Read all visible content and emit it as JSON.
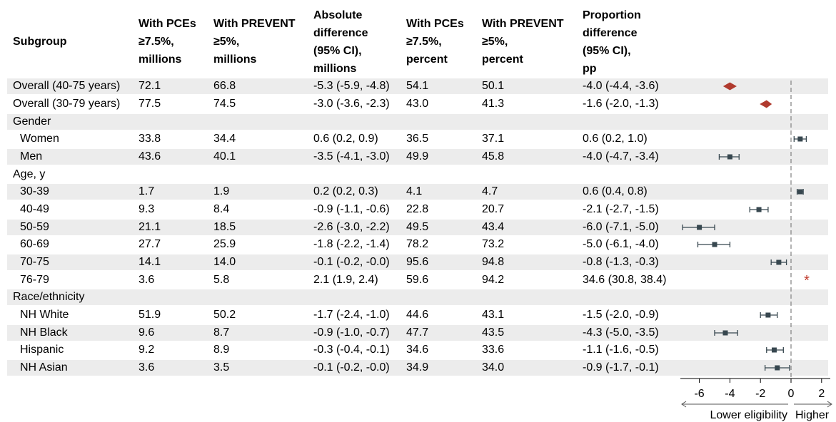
{
  "headers": [
    [
      "Subgroup"
    ],
    [
      "With PCEs",
      "≥7.5%,",
      "millions"
    ],
    [
      "With PREVENT",
      "≥5%,",
      "millions"
    ],
    [
      "Absolute",
      "difference",
      "(95% CI),",
      "millions"
    ],
    [
      "With PCEs",
      "≥7.5%,",
      "percent"
    ],
    [
      "With PREVENT",
      "≥5%,",
      "percent"
    ],
    [
      "Proportion",
      "difference",
      "(95% CI),",
      "pp"
    ]
  ],
  "rows": [
    {
      "label": "Overall (40-75 years)",
      "pce_m": "72.1",
      "prev_m": "66.8",
      "abs_diff": "-5.3 (-5.9, -4.8)",
      "pce_pct": "54.1",
      "prev_pct": "50.1",
      "prop_diff": "-4.0 (-4.4, -3.6)"
    },
    {
      "label": "Overall (30-79 years)",
      "pce_m": "77.5",
      "prev_m": "74.5",
      "abs_diff": "-3.0 (-3.6, -2.3)",
      "pce_pct": "43.0",
      "prev_pct": "41.3",
      "prop_diff": "-1.6 (-2.0, -1.3)"
    },
    {
      "label": "Gender",
      "pce_m": "",
      "prev_m": "",
      "abs_diff": "",
      "pce_pct": "",
      "prev_pct": "",
      "prop_diff": ""
    },
    {
      "label": "Women",
      "pce_m": "33.8",
      "prev_m": "34.4",
      "abs_diff": "0.6 (0.2, 0.9)",
      "pce_pct": "36.5",
      "prev_pct": "37.1",
      "prop_diff": "0.6 (0.2, 1.0)"
    },
    {
      "label": "Men",
      "pce_m": "43.6",
      "prev_m": "40.1",
      "abs_diff": "-3.5 (-4.1, -3.0)",
      "pce_pct": "49.9",
      "prev_pct": "45.8",
      "prop_diff": "-4.0 (-4.7, -3.4)"
    },
    {
      "label": "Age, y",
      "pce_m": "",
      "prev_m": "",
      "abs_diff": "",
      "pce_pct": "",
      "prev_pct": "",
      "prop_diff": ""
    },
    {
      "label": "30-39",
      "pce_m": "1.7",
      "prev_m": "1.9",
      "abs_diff": "0.2 (0.2, 0.3)",
      "pce_pct": "4.1",
      "prev_pct": "4.7",
      "prop_diff": "0.6 (0.4, 0.8)"
    },
    {
      "label": "40-49",
      "pce_m": "9.3",
      "prev_m": "8.4",
      "abs_diff": "-0.9 (-1.1, -0.6)",
      "pce_pct": "22.8",
      "prev_pct": "20.7",
      "prop_diff": "-2.1 (-2.7, -1.5)"
    },
    {
      "label": "50-59",
      "pce_m": "21.1",
      "prev_m": "18.5",
      "abs_diff": "-2.6 (-3.0, -2.2)",
      "pce_pct": "49.5",
      "prev_pct": "43.4",
      "prop_diff": "-6.0 (-7.1, -5.0)"
    },
    {
      "label": "60-69",
      "pce_m": "27.7",
      "prev_m": "25.9",
      "abs_diff": "-1.8 (-2.2, -1.4)",
      "pce_pct": "78.2",
      "prev_pct": "73.2",
      "prop_diff": "-5.0 (-6.1, -4.0)"
    },
    {
      "label": "70-75",
      "pce_m": "14.1",
      "prev_m": "14.0",
      "abs_diff": "-0.1 (-0.2, -0.0)",
      "pce_pct": "95.6",
      "prev_pct": "94.8",
      "prop_diff": "-0.8 (-1.3, -0.3)"
    },
    {
      "label": "76-79",
      "pce_m": "3.6",
      "prev_m": "5.8",
      "abs_diff": "2.1 (1.9, 2.4)",
      "pce_pct": "59.6",
      "prev_pct": "94.2",
      "prop_diff": "34.6 (30.8, 38.4)"
    },
    {
      "label": "Race/ethnicity",
      "pce_m": "",
      "prev_m": "",
      "abs_diff": "",
      "pce_pct": "",
      "prev_pct": "",
      "prop_diff": ""
    },
    {
      "label": "NH White",
      "pce_m": "51.9",
      "prev_m": "50.2",
      "abs_diff": "-1.7 (-2.4, -1.0)",
      "pce_pct": "44.6",
      "prev_pct": "43.1",
      "prop_diff": "-1.5 (-2.0, -0.9)"
    },
    {
      "label": "NH Black",
      "pce_m": "9.6",
      "prev_m": "8.7",
      "abs_diff": "-0.9 (-1.0, -0.7)",
      "pce_pct": "47.7",
      "prev_pct": "43.5",
      "prop_diff": "-4.3 (-5.0, -3.5)"
    },
    {
      "label": "Hispanic",
      "pce_m": "9.2",
      "prev_m": "8.9",
      "abs_diff": "-0.3 (-0.4, -0.1)",
      "pce_pct": "34.6",
      "prev_pct": "33.6",
      "prop_diff": "-1.1 (-1.6, -0.5)"
    },
    {
      "label": "NH Asian",
      "pce_m": "3.6",
      "prev_m": "3.5",
      "abs_diff": "-0.1 (-0.2, -0.0)",
      "pce_pct": "34.9",
      "prev_pct": "34.0",
      "prop_diff": "-0.9 (-1.7, -0.1)"
    }
  ],
  "colors": {
    "row_shade": "#ececec",
    "overall_marker": "#b03a2e",
    "point_marker": "#37474f",
    "out_of_range_marker": "#c0392b",
    "reference_line": "#808080"
  },
  "chart_data": {
    "type": "forest",
    "xlim": [
      -7.5,
      2.5
    ],
    "xticks": [
      -6,
      -4,
      -2,
      0,
      2
    ],
    "tick_labels": [
      "-6",
      "-4",
      "-2",
      "0",
      "2"
    ],
    "reference_line": 0,
    "direction_labels": {
      "left": "Lower eligibility",
      "right": "Higher"
    },
    "out_of_range_symbol": "*",
    "points": [
      {
        "row": 0,
        "est": -4.0,
        "lo": -4.4,
        "hi": -3.6,
        "marker": "diamond"
      },
      {
        "row": 1,
        "est": -1.6,
        "lo": -2.0,
        "hi": -1.3,
        "marker": "diamond"
      },
      {
        "row": 3,
        "est": 0.6,
        "lo": 0.2,
        "hi": 1.0,
        "marker": "square"
      },
      {
        "row": 4,
        "est": -4.0,
        "lo": -4.7,
        "hi": -3.4,
        "marker": "square"
      },
      {
        "row": 6,
        "est": 0.6,
        "lo": 0.4,
        "hi": 0.8,
        "marker": "square"
      },
      {
        "row": 7,
        "est": -2.1,
        "lo": -2.7,
        "hi": -1.5,
        "marker": "square"
      },
      {
        "row": 8,
        "est": -6.0,
        "lo": -7.1,
        "hi": -5.0,
        "marker": "square"
      },
      {
        "row": 9,
        "est": -5.0,
        "lo": -6.1,
        "hi": -4.0,
        "marker": "square"
      },
      {
        "row": 10,
        "est": -0.8,
        "lo": -1.3,
        "hi": -0.3,
        "marker": "square"
      },
      {
        "row": 11,
        "est": 34.6,
        "lo": 30.8,
        "hi": 38.4,
        "marker": "out-of-range"
      },
      {
        "row": 13,
        "est": -1.5,
        "lo": -2.0,
        "hi": -0.9,
        "marker": "square"
      },
      {
        "row": 14,
        "est": -4.3,
        "lo": -5.0,
        "hi": -3.5,
        "marker": "square"
      },
      {
        "row": 15,
        "est": -1.1,
        "lo": -1.6,
        "hi": -0.5,
        "marker": "square"
      },
      {
        "row": 16,
        "est": -0.9,
        "lo": -1.7,
        "hi": -0.1,
        "marker": "square"
      }
    ]
  }
}
